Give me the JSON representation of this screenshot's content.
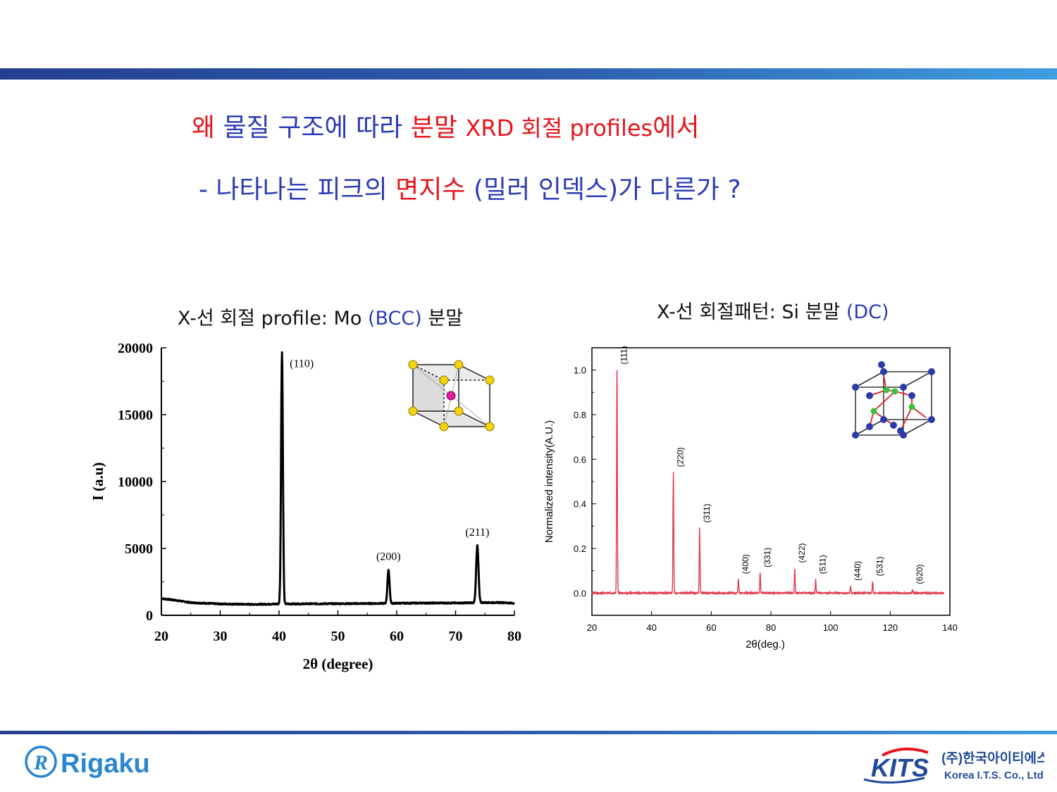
{
  "slide": {
    "title_parts": [
      {
        "text": "왜 ",
        "color": "#e8141b"
      },
      {
        "text": "물질 구조에 따라 ",
        "color": "#2b3bb5"
      },
      {
        "text": "분말 ",
        "color": "#e8141b"
      },
      {
        "text": "XRD 회절 profiles",
        "color": "#e8141b"
      },
      {
        "text": "에서",
        "color": "#e8141b"
      }
    ],
    "subtitle_parts": [
      {
        "text": "-  나타나는 피크의 ",
        "color": "#2b3bb5"
      },
      {
        "text": "면지수",
        "color": "#e8141b"
      },
      {
        "text": " (밀러 인덱스)가 다른가 ?",
        "color": "#2b3bb5"
      }
    ]
  },
  "footer": {
    "left_logo_text": "Rigaku",
    "right_logo_text": "KITS",
    "right_company_korean": "(주)한국아이티에스",
    "right_company_english": "Korea I.T.S. Co., Ltd."
  },
  "chart_data": [
    {
      "type": "line",
      "title_main": "X-선 회절 profile: Mo ",
      "title_accent": "(BCC)",
      "title_tail": " 분말",
      "xlabel": "2θ (degree)",
      "ylabel": "I (a.u)",
      "xlim": [
        20,
        80
      ],
      "ylim": [
        0,
        20000
      ],
      "xticks": [
        "20",
        "30",
        "40",
        "50",
        "60",
        "70",
        "80"
      ],
      "yticks": [
        "0",
        "5000",
        "10000",
        "15000",
        "20000"
      ],
      "line_color": "#000000",
      "baseline": [
        [
          20,
          1250
        ],
        [
          22,
          1150
        ],
        [
          25,
          950
        ],
        [
          30,
          850
        ],
        [
          35,
          820
        ],
        [
          38,
          830
        ],
        [
          40,
          850
        ],
        [
          42,
          850
        ],
        [
          45,
          860
        ],
        [
          50,
          870
        ],
        [
          55,
          880
        ],
        [
          58,
          890
        ],
        [
          60,
          900
        ],
        [
          65,
          920
        ],
        [
          70,
          920
        ],
        [
          72,
          930
        ],
        [
          75,
          950
        ],
        [
          78,
          950
        ],
        [
          80,
          900
        ]
      ],
      "peaks": [
        {
          "label": "(110)",
          "x": 40.5,
          "height": 19700,
          "width": 0.22
        },
        {
          "label": "(200)",
          "x": 58.6,
          "height": 3400,
          "width": 0.25
        },
        {
          "label": "(211)",
          "x": 73.7,
          "height": 5200,
          "width": 0.28
        }
      ],
      "inset": "BCC unit cell (yellow corner atoms, magenta body-center atom)"
    },
    {
      "type": "line",
      "title_main": "X-선 회절패턴: Si 분말 ",
      "title_accent": "(DC)",
      "xlabel": "2θ(deg.)",
      "ylabel": "Normalized intensity(A.U.)",
      "xlim": [
        20,
        140
      ],
      "ylim": [
        -0.1,
        1.1
      ],
      "xticks": [
        "20",
        "40",
        "60",
        "80",
        "100",
        "120",
        "140"
      ],
      "yticks": [
        "0.0",
        "0.2",
        "0.4",
        "0.6",
        "0.8",
        "1.0"
      ],
      "line_color": "#e03a50",
      "baseline_value": 0.0,
      "peaks": [
        {
          "label": "(111)",
          "x": 28.4,
          "height": 1.0
        },
        {
          "label": "(220)",
          "x": 47.3,
          "height": 0.54
        },
        {
          "label": "(311)",
          "x": 56.1,
          "height": 0.29
        },
        {
          "label": "(400)",
          "x": 69.1,
          "height": 0.06
        },
        {
          "label": "(331)",
          "x": 76.4,
          "height": 0.09
        },
        {
          "label": "(422)",
          "x": 88.0,
          "height": 0.11
        },
        {
          "label": "(511)",
          "x": 95.0,
          "height": 0.06
        },
        {
          "label": "(440)",
          "x": 106.7,
          "height": 0.03
        },
        {
          "label": "(531)",
          "x": 114.1,
          "height": 0.05
        },
        {
          "label": "(620)",
          "x": 127.5,
          "height": 0.015
        }
      ],
      "inset": "Diamond cubic unit cell (blue atoms, green atoms, red bonds)"
    }
  ]
}
